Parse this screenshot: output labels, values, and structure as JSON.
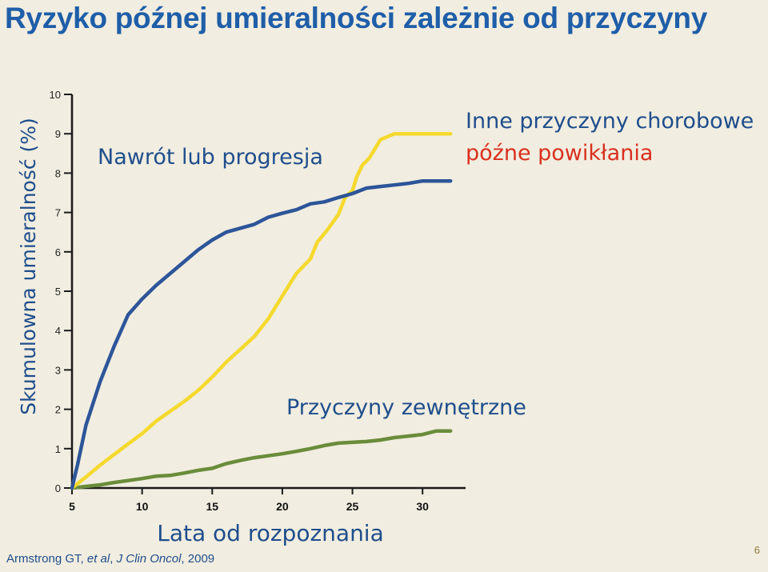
{
  "slide": {
    "title": "Ryzyko późnej umieralności zależnie od przyczyny",
    "citation": {
      "authors": "Armstrong GT, ",
      "etal": "et al",
      "sep": ", ",
      "journal": "J Clin Oncol",
      "year": ", 2009"
    },
    "page_number": "6"
  },
  "chart_data": {
    "type": "line",
    "title": "Ryzyko późnej umieralności zależnie od przyczyny",
    "xlabel": "Lata od rozpoznania",
    "ylabel": "Skumulowna umieralność (%)",
    "xlim": [
      5,
      32.5
    ],
    "ylim": [
      0,
      10
    ],
    "x_ticks": [
      5,
      10,
      15,
      20,
      25,
      30
    ],
    "y_ticks": [
      0,
      1,
      2,
      3,
      4,
      5,
      6,
      7,
      8,
      9,
      10
    ],
    "grid": false,
    "series": [
      {
        "name": "Nawrót lub progresja",
        "color": "#2d5599",
        "points": [
          [
            5,
            0
          ],
          [
            5.4,
            0.6
          ],
          [
            6,
            1.6
          ],
          [
            7,
            2.7
          ],
          [
            8,
            3.6
          ],
          [
            9,
            4.4
          ],
          [
            10,
            4.8
          ],
          [
            11,
            5.15
          ],
          [
            12,
            5.45
          ],
          [
            13,
            5.75
          ],
          [
            14,
            6.05
          ],
          [
            15,
            6.3
          ],
          [
            16,
            6.5
          ],
          [
            17,
            6.6
          ],
          [
            18,
            6.7
          ],
          [
            19,
            6.88
          ],
          [
            20,
            6.98
          ],
          [
            21,
            7.07
          ],
          [
            22,
            7.22
          ],
          [
            23,
            7.27
          ],
          [
            24,
            7.38
          ],
          [
            25,
            7.48
          ],
          [
            26,
            7.62
          ],
          [
            27,
            7.66
          ],
          [
            28,
            7.7
          ],
          [
            29,
            7.74
          ],
          [
            30,
            7.8
          ],
          [
            31,
            7.8
          ],
          [
            32,
            7.8
          ]
        ],
        "label_color": "#1f4e8c"
      },
      {
        "name": "Inne przyczyny chorobowe",
        "color": "#f5d92d",
        "points": [
          [
            5,
            0
          ],
          [
            6,
            0.28
          ],
          [
            7,
            0.58
          ],
          [
            8,
            0.85
          ],
          [
            9,
            1.12
          ],
          [
            10,
            1.38
          ],
          [
            11,
            1.7
          ],
          [
            12,
            1.95
          ],
          [
            13,
            2.2
          ],
          [
            14,
            2.48
          ],
          [
            15,
            2.82
          ],
          [
            16,
            3.2
          ],
          [
            17,
            3.52
          ],
          [
            18,
            3.85
          ],
          [
            19,
            4.3
          ],
          [
            20,
            4.88
          ],
          [
            21,
            5.45
          ],
          [
            22,
            5.82
          ],
          [
            22.5,
            6.25
          ],
          [
            23.2,
            6.55
          ],
          [
            24,
            6.95
          ],
          [
            24.5,
            7.4
          ],
          [
            25,
            7.55
          ],
          [
            25.3,
            7.9
          ],
          [
            25.7,
            8.2
          ],
          [
            26.2,
            8.38
          ],
          [
            27,
            8.85
          ],
          [
            28,
            9.0
          ],
          [
            32,
            9.0
          ]
        ],
        "label_color": "#1f4e8c"
      },
      {
        "name": "Przyczyny zewnętrzne",
        "color": "#6a8c3a",
        "points": [
          [
            5,
            0
          ],
          [
            6,
            0.04
          ],
          [
            7,
            0.08
          ],
          [
            8,
            0.14
          ],
          [
            9,
            0.19
          ],
          [
            10,
            0.24
          ],
          [
            11,
            0.3
          ],
          [
            12,
            0.32
          ],
          [
            13,
            0.38
          ],
          [
            14,
            0.45
          ],
          [
            15,
            0.5
          ],
          [
            16,
            0.62
          ],
          [
            17,
            0.7
          ],
          [
            18,
            0.77
          ],
          [
            19,
            0.82
          ],
          [
            20,
            0.87
          ],
          [
            21,
            0.93
          ],
          [
            22,
            1.0
          ],
          [
            23,
            1.08
          ],
          [
            24,
            1.14
          ],
          [
            25,
            1.16
          ],
          [
            26,
            1.18
          ],
          [
            27,
            1.22
          ],
          [
            28,
            1.28
          ],
          [
            29,
            1.32
          ],
          [
            30,
            1.36
          ],
          [
            31,
            1.45
          ],
          [
            32,
            1.45
          ]
        ],
        "label_color": "#1f4e8c"
      },
      {
        "name": "późne powikłania",
        "color": "#d9301f",
        "label_color": "#d9301f"
      }
    ]
  }
}
